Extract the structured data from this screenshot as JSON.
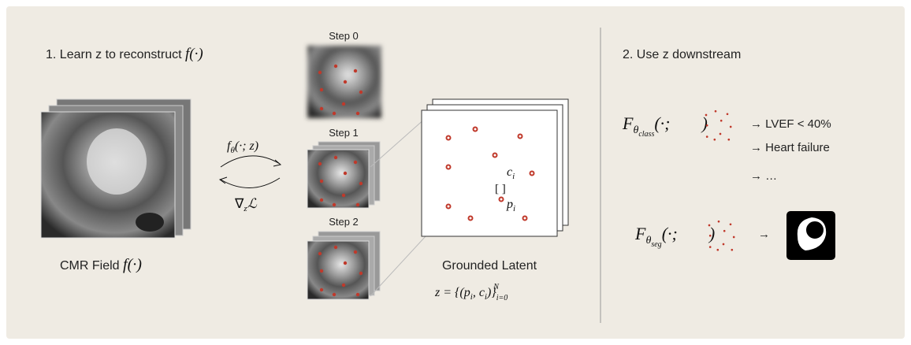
{
  "left": {
    "heading": "1. Learn z to reconstruct",
    "heading_math": "f(·)",
    "field_label": "CMR Field",
    "field_math": "f(·)",
    "forward": {
      "base": "f",
      "sub": "θ",
      "rest": "(·; z)"
    },
    "backward": {
      "base": "∇",
      "sub": "z",
      "rest": "ℒ"
    },
    "steps": [
      "Step 0",
      "Step 1",
      "Step 2"
    ],
    "latent": {
      "title": "Grounded Latent",
      "c_base": "c",
      "c_sub": "i",
      "p_base": "p",
      "p_sub": "i",
      "bracket": "[ ]",
      "formula": {
        "head": "z = {(p",
        "sub1": "i",
        "mid": ", c",
        "sub2": "i",
        "tail": ")}",
        "lower": "i=0",
        "upper": "N"
      }
    }
  },
  "right": {
    "heading": "2. Use z downstream",
    "classifier": {
      "base": "F",
      "sub": "θ",
      "subsub": "class",
      "open": "(·;",
      "close": ")"
    },
    "outputs": [
      "→ LVEF < 40%",
      "→ Heart failure",
      "→ …"
    ],
    "segmenter": {
      "base": "F",
      "sub": "θ",
      "subsub": "seg",
      "open": "(·;",
      "close": ")",
      "arrow": "→"
    }
  }
}
